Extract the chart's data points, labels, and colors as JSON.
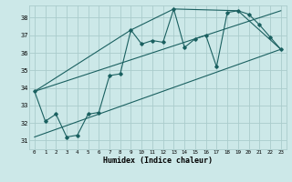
{
  "xlabel": "Humidex (Indice chaleur)",
  "xlim": [
    -0.5,
    23.5
  ],
  "ylim": [
    30.5,
    38.7
  ],
  "yticks": [
    31,
    32,
    33,
    34,
    35,
    36,
    37,
    38
  ],
  "xticks": [
    0,
    1,
    2,
    3,
    4,
    5,
    6,
    7,
    8,
    9,
    10,
    11,
    12,
    13,
    14,
    15,
    16,
    17,
    18,
    19,
    20,
    21,
    22,
    23
  ],
  "bg_color": "#cce8e8",
  "grid_color": "#aacccc",
  "line_color": "#1a6060",
  "main_x": [
    0,
    1,
    2,
    3,
    4,
    5,
    6,
    7,
    8,
    9,
    10,
    11,
    12,
    13,
    14,
    15,
    16,
    17,
    18,
    19,
    20,
    21,
    22,
    23
  ],
  "main_y": [
    33.8,
    32.1,
    32.5,
    31.2,
    31.3,
    32.5,
    32.6,
    34.7,
    34.8,
    37.3,
    36.5,
    36.7,
    36.6,
    38.5,
    36.3,
    36.8,
    37.0,
    35.2,
    38.3,
    38.4,
    38.2,
    37.6,
    36.9,
    36.2
  ],
  "line1_x": [
    0,
    23
  ],
  "line1_y": [
    31.2,
    36.2
  ],
  "line2_x": [
    0,
    23
  ],
  "line2_y": [
    33.8,
    38.4
  ],
  "line3_x": [
    0,
    9,
    13,
    19,
    23
  ],
  "line3_y": [
    33.8,
    37.3,
    38.5,
    38.4,
    36.2
  ]
}
